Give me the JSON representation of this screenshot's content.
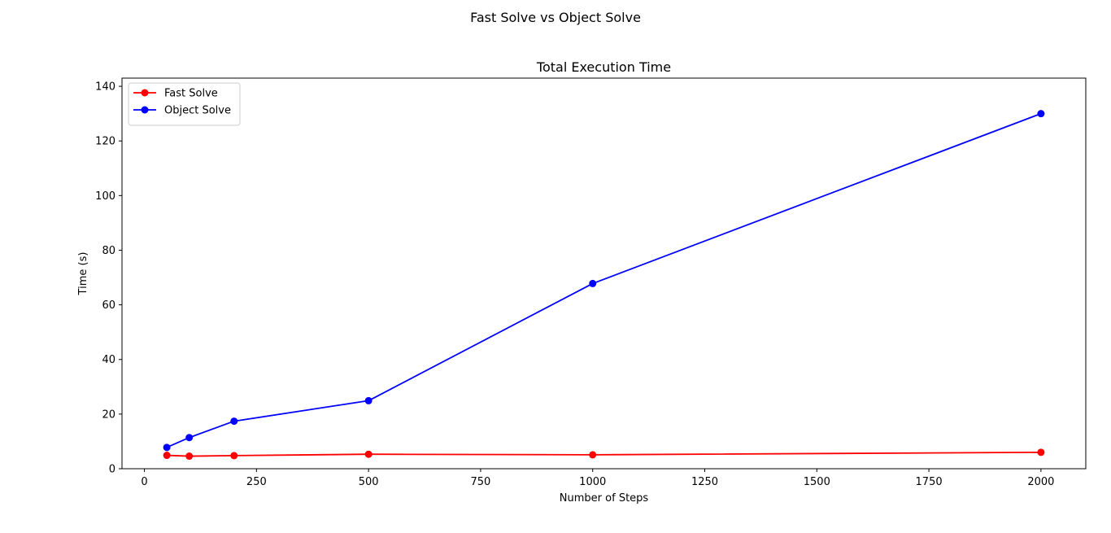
{
  "figure": {
    "suptitle": "Fast Solve vs Object Solve"
  },
  "chart_data": {
    "type": "line",
    "title": "Total Execution Time",
    "xlabel": "Number of Steps",
    "ylabel": "Time (s)",
    "xlim": [
      -50,
      2100
    ],
    "ylim": [
      0,
      143
    ],
    "x_ticks": [
      0,
      250,
      500,
      750,
      1000,
      1250,
      1500,
      1750,
      2000
    ],
    "y_ticks": [
      0,
      20,
      40,
      60,
      80,
      100,
      120,
      140
    ],
    "grid": false,
    "legend_position": "top-left",
    "marker": "circle",
    "x": [
      50,
      100,
      200,
      500,
      1000,
      2000
    ],
    "series": [
      {
        "name": "Fast Solve",
        "color": "#ff0000",
        "values": [
          4.9,
          4.6,
          4.8,
          5.3,
          5.1,
          6.0
        ]
      },
      {
        "name": "Object Solve",
        "color": "#0000ff",
        "values": [
          7.8,
          11.4,
          17.4,
          24.9,
          67.8,
          130.0
        ]
      }
    ]
  }
}
